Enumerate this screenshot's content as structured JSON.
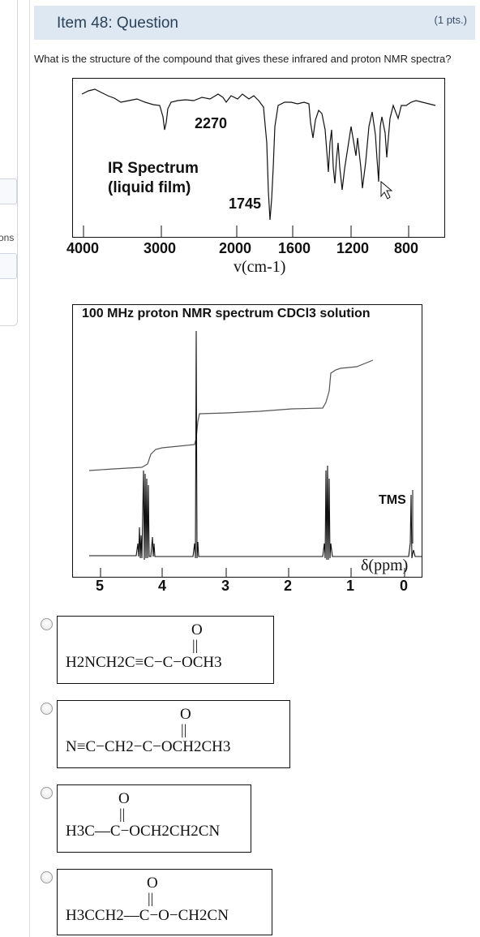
{
  "left_panel": {
    "fragment_text": "ons"
  },
  "header": {
    "title": "Item 48: Question",
    "points": "(1 pts.)"
  },
  "question": {
    "text": "What is the structure of the compound that gives these infrared and proton NMR spectra?"
  },
  "ir_spectrum": {
    "title_line1": "IR Spectrum",
    "title_line2": "(liquid film)",
    "peak_label_1": "2270",
    "peak_label_2": "1745",
    "x_ticks": [
      "4000",
      "3000",
      "2000",
      "1600",
      "1200",
      "800"
    ],
    "x_axis_unit": "v(cm-1)"
  },
  "nmr_spectrum": {
    "title": "100 MHz proton NMR spectrum CDCl3 solution",
    "x_ticks": [
      "5",
      "4",
      "3",
      "2",
      "1",
      "0"
    ],
    "reference_label": "TMS",
    "axis_label": "δ(ppm)"
  },
  "answer_choices": [
    {
      "formula_left": "H2NCH2C",
      "triple": "≡",
      "formula_mid": "C−C−OCH3",
      "carbonyl_o": "O"
    },
    {
      "formula_left": "N",
      "triple": "≡",
      "formula_mid": "C−CH2−C−OCH2CH3",
      "carbonyl_o": "O"
    },
    {
      "formula_left": "H3C",
      "formula_mid": "—C−OCH2CH2CN",
      "carbonyl_o": "O"
    },
    {
      "formula_left": "H3CCH2",
      "formula_mid": "—C−O−CH2CN",
      "carbonyl_o": "O"
    }
  ]
}
